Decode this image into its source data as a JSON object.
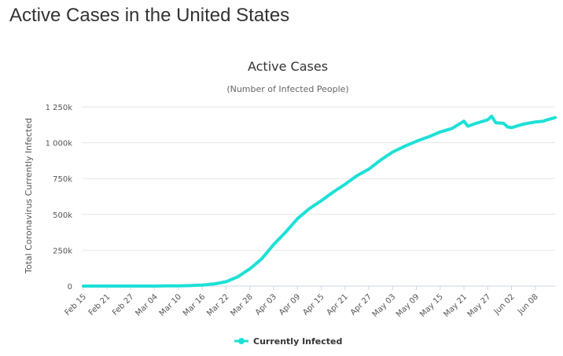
{
  "page_title": "Active Cases in the United States",
  "colors": {
    "series": "#1de0d6",
    "grid": "#e6e6e6",
    "axis": "#ccd6eb"
  },
  "chart_data": {
    "type": "line",
    "title": "Active Cases",
    "subtitle": "(Number of Infected People)",
    "ylabel": "Total Coronavirus Currently Infected",
    "xlabel": "",
    "ylim": [
      0,
      1250000
    ],
    "yticks": [
      0,
      250000,
      500000,
      750000,
      1000000,
      1250000
    ],
    "ytick_labels": [
      "0",
      "250k",
      "500k",
      "750k",
      "1 000k",
      "1 250k"
    ],
    "xtick_labels": [
      "Feb 15",
      "Feb 21",
      "Feb 27",
      "Mar 04",
      "Mar 10",
      "Mar 16",
      "Mar 22",
      "Mar 28",
      "Apr 03",
      "Apr 09",
      "Apr 15",
      "Apr 21",
      "Apr 27",
      "May 03",
      "May 09",
      "May 15",
      "May 21",
      "May 27",
      "Jun 02",
      "Jun 08"
    ],
    "grid": true,
    "legend_position": "bottom-center",
    "series": [
      {
        "name": "Currently Infected",
        "x": [
          "Feb 15",
          "Feb 18",
          "Feb 21",
          "Feb 24",
          "Feb 27",
          "Mar 01",
          "Mar 04",
          "Mar 07",
          "Mar 10",
          "Mar 13",
          "Mar 16",
          "Mar 19",
          "Mar 22",
          "Mar 25",
          "Mar 28",
          "Mar 31",
          "Apr 03",
          "Apr 06",
          "Apr 09",
          "Apr 12",
          "Apr 15",
          "Apr 18",
          "Apr 21",
          "Apr 24",
          "Apr 27",
          "Apr 30",
          "May 03",
          "May 06",
          "May 09",
          "May 12",
          "May 15",
          "May 18",
          "May 21",
          "May 22",
          "May 24",
          "May 27",
          "May 28",
          "May 29",
          "May 31",
          "Jun 01",
          "Jun 02",
          "Jun 05",
          "Jun 08",
          "Jun 10",
          "Jun 11",
          "Jun 13"
        ],
        "values": [
          15,
          15,
          20,
          40,
          50,
          80,
          200,
          900,
          1500,
          3500,
          7000,
          15000,
          30000,
          65000,
          120000,
          190000,
          290000,
          375000,
          470000,
          540000,
          595000,
          655000,
          710000,
          770000,
          815000,
          880000,
          935000,
          975000,
          1010000,
          1040000,
          1075000,
          1100000,
          1150000,
          1115000,
          1135000,
          1160000,
          1185000,
          1140000,
          1135000,
          1110000,
          1105000,
          1130000,
          1145000,
          1150000,
          1160000,
          1175000
        ]
      }
    ]
  }
}
